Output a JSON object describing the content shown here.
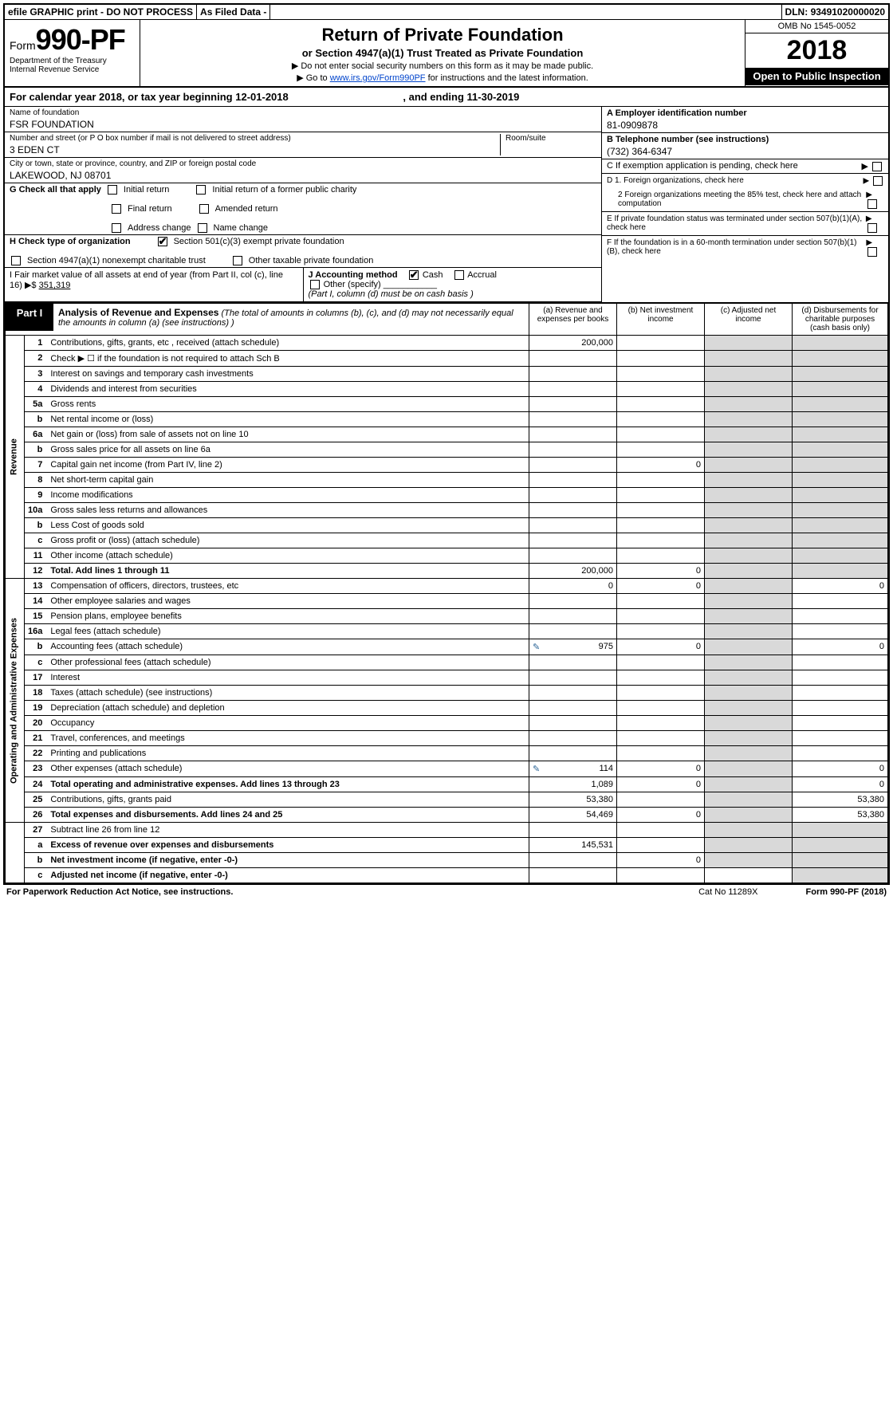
{
  "top": {
    "efile": "efile GRAPHIC print - DO NOT PROCESS",
    "asfiled": "As Filed Data -",
    "dln_label": "DLN:",
    "dln": "93491020000020"
  },
  "header": {
    "form_prefix": "Form",
    "form_number": "990-PF",
    "dept": "Department of the Treasury",
    "irs": "Internal Revenue Service",
    "title": "Return of Private Foundation",
    "subtitle": "or Section 4947(a)(1) Trust Treated as Private Foundation",
    "warn1": "▶ Do not enter social security numbers on this form as it may be made public.",
    "warn2_pre": "▶ Go to ",
    "warn2_link": "www.irs.gov/Form990PF",
    "warn2_post": " for instructions and the latest information.",
    "omb": "OMB No 1545-0052",
    "year": "2018",
    "opentopublic": "Open to Public Inspection"
  },
  "calyear": {
    "text_pre": "For calendar year 2018, or tax year beginning ",
    "begin": "12-01-2018",
    "text_mid": " , and ending ",
    "end": "11-30-2019"
  },
  "info": {
    "name_lbl": "Name of foundation",
    "name": "FSR FOUNDATION",
    "addr_lbl": "Number and street (or P O  box number if mail is not delivered to street address)",
    "addr": "3 EDEN CT",
    "room_lbl": "Room/suite",
    "city_lbl": "City or town, state or province, country, and ZIP or foreign postal code",
    "city": "LAKEWOOD, NJ  08701",
    "einA_lbl": "A Employer identification number",
    "ein": "81-0909878",
    "telB_lbl": "B Telephone number (see instructions)",
    "tel": "(732) 364-6347",
    "C_lbl": "C If exemption application is pending, check here",
    "D1": "D 1. Foreign organizations, check here",
    "D2": "2  Foreign organizations meeting the 85% test, check here and attach computation",
    "E": "E  If private foundation status was terminated under section 507(b)(1)(A), check here",
    "F": "F  If the foundation is in a 60-month termination under section 507(b)(1)(B), check here"
  },
  "G": {
    "label": "G Check all that apply",
    "opts": [
      "Initial return",
      "Initial return of a former public charity",
      "Final return",
      "Amended return",
      "Address change",
      "Name change"
    ]
  },
  "H": {
    "label": "H Check type of organization",
    "opt1": "Section 501(c)(3) exempt private foundation",
    "opt2": "Section 4947(a)(1) nonexempt charitable trust",
    "opt3": "Other taxable private foundation"
  },
  "I": {
    "label": "I Fair market value of all assets at end of year (from Part II, col  (c), line 16)",
    "value_prefix": "▶$ ",
    "value": "351,319"
  },
  "J": {
    "label": "J Accounting method",
    "cash": "Cash",
    "accrual": "Accrual",
    "other": "Other (specify)",
    "note": "(Part I, column (d) must be on cash basis )"
  },
  "part1": {
    "label": "Part I",
    "title": "Analysis of Revenue and Expenses",
    "desc": " (The total of amounts in columns (b), (c), and (d) may not necessarily equal the amounts in column (a) (see instructions) )",
    "colA": "(a)   Revenue and expenses per books",
    "colB": "(b)  Net investment income",
    "colC": "(c)  Adjusted net income",
    "colD": "(d)  Disbursements for charitable purposes (cash basis only)"
  },
  "vlabels": {
    "rev": "Revenue",
    "exp": "Operating and Administrative Expenses"
  },
  "rows": [
    {
      "n": "1",
      "d": "Contributions, gifts, grants, etc , received (attach schedule)",
      "a": "200,000"
    },
    {
      "n": "2",
      "d": "Check ▶ ☐ if the foundation is not required to attach Sch B"
    },
    {
      "n": "3",
      "d": "Interest on savings and temporary cash investments"
    },
    {
      "n": "4",
      "d": "Dividends and interest from securities"
    },
    {
      "n": "5a",
      "d": "Gross rents"
    },
    {
      "n": "b",
      "d": "Net rental income or (loss)"
    },
    {
      "n": "6a",
      "d": "Net gain or (loss) from sale of assets not on line 10"
    },
    {
      "n": "b",
      "d": "Gross sales price for all assets on line 6a"
    },
    {
      "n": "7",
      "d": "Capital gain net income (from Part IV, line 2)",
      "b": "0"
    },
    {
      "n": "8",
      "d": "Net short-term capital gain"
    },
    {
      "n": "9",
      "d": "Income modifications"
    },
    {
      "n": "10a",
      "d": "Gross sales less returns and allowances"
    },
    {
      "n": "b",
      "d": "Less  Cost of goods sold"
    },
    {
      "n": "c",
      "d": "Gross profit or (loss) (attach schedule)"
    },
    {
      "n": "11",
      "d": "Other income (attach schedule)"
    },
    {
      "n": "12",
      "d": "Total. Add lines 1 through 11",
      "a": "200,000",
      "b": "0",
      "bold": true
    },
    {
      "n": "13",
      "d": "Compensation of officers, directors, trustees, etc",
      "a": "0",
      "b": "0",
      "dd": "0"
    },
    {
      "n": "14",
      "d": "Other employee salaries and wages"
    },
    {
      "n": "15",
      "d": "Pension plans, employee benefits"
    },
    {
      "n": "16a",
      "d": "Legal fees (attach schedule)"
    },
    {
      "n": "b",
      "d": "Accounting fees (attach schedule)",
      "a": "975",
      "b": "0",
      "dd": "0",
      "icon": true
    },
    {
      "n": "c",
      "d": "Other professional fees (attach schedule)"
    },
    {
      "n": "17",
      "d": "Interest"
    },
    {
      "n": "18",
      "d": "Taxes (attach schedule) (see instructions)"
    },
    {
      "n": "19",
      "d": "Depreciation (attach schedule) and depletion"
    },
    {
      "n": "20",
      "d": "Occupancy"
    },
    {
      "n": "21",
      "d": "Travel, conferences, and meetings"
    },
    {
      "n": "22",
      "d": "Printing and publications"
    },
    {
      "n": "23",
      "d": "Other expenses (attach schedule)",
      "a": "114",
      "b": "0",
      "dd": "0",
      "icon": true
    },
    {
      "n": "24",
      "d": "Total operating and administrative expenses. Add lines 13 through 23",
      "a": "1,089",
      "b": "0",
      "dd": "0",
      "bold": true
    },
    {
      "n": "25",
      "d": "Contributions, gifts, grants paid",
      "a": "53,380",
      "dd": "53,380"
    },
    {
      "n": "26",
      "d": "Total expenses and disbursements. Add lines 24 and 25",
      "a": "54,469",
      "b": "0",
      "dd": "53,380",
      "bold": true
    },
    {
      "n": "27",
      "d": "Subtract line 26 from line 12"
    },
    {
      "n": "a",
      "d": "Excess of revenue over expenses and disbursements",
      "a": "145,531",
      "bold": true
    },
    {
      "n": "b",
      "d": "Net investment income (if negative, enter -0-)",
      "b": "0",
      "bold": true
    },
    {
      "n": "c",
      "d": "Adjusted net income (if negative, enter -0-)",
      "bold": true
    }
  ],
  "footer": {
    "left": "For Paperwork Reduction Act Notice, see instructions.",
    "mid": "Cat No  11289X",
    "right": "Form 990-PF (2018)"
  }
}
